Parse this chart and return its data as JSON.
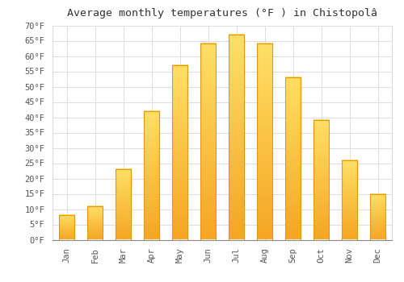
{
  "title": "Average monthly temperatures (°F ) in Chistopolâ",
  "months": [
    "Jan",
    "Feb",
    "Mar",
    "Apr",
    "May",
    "Jun",
    "Jul",
    "Aug",
    "Sep",
    "Oct",
    "Nov",
    "Dec"
  ],
  "values": [
    8,
    11,
    23,
    42,
    57,
    64,
    67,
    64,
    53,
    39,
    26,
    15
  ],
  "bar_color_bottom": "#F5A623",
  "bar_color_top": "#FFE066",
  "ylim": [
    0,
    70
  ],
  "yticks": [
    0,
    5,
    10,
    15,
    20,
    25,
    30,
    35,
    40,
    45,
    50,
    55,
    60,
    65,
    70
  ],
  "ylabel_suffix": "°F",
  "background_color": "#FFFFFF",
  "grid_color": "#DDDDDD",
  "title_fontsize": 9.5,
  "tick_fontsize": 7.5,
  "figsize": [
    5.0,
    3.5
  ],
  "dpi": 100
}
